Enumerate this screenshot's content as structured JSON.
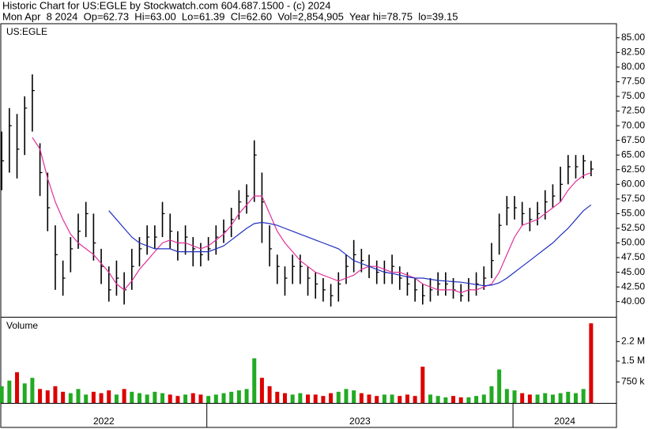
{
  "chart_data": [
    {
      "type": "ohlc",
      "title": "Historic Chart for US:EGLE by Stockwatch.com 604.687.1500 - (c) 2024",
      "subtitle": "Mon Apr  8 2024  Op=62.73  Hi=63.00  Lo=61.39  Cl=62.60  Vol=2,854,905  Year hi=78.75  lo=39.15",
      "label": "US:EGLE",
      "color": "#000000",
      "x": [
        2022.33,
        2022.355,
        2022.38,
        2022.405,
        2022.43,
        2022.455,
        2022.48,
        2022.505,
        2022.53,
        2022.555,
        2022.58,
        2022.605,
        2022.63,
        2022.655,
        2022.68,
        2022.705,
        2022.73,
        2022.755,
        2022.78,
        2022.805,
        2022.83,
        2022.855,
        2022.88,
        2022.905,
        2022.93,
        2022.955,
        2022.98,
        2023.005,
        2023.03,
        2023.055,
        2023.08,
        2023.105,
        2023.13,
        2023.155,
        2023.18,
        2023.205,
        2023.23,
        2023.255,
        2023.28,
        2023.305,
        2023.33,
        2023.355,
        2023.38,
        2023.405,
        2023.43,
        2023.455,
        2023.48,
        2023.505,
        2023.53,
        2023.555,
        2023.58,
        2023.605,
        2023.63,
        2023.655,
        2023.68,
        2023.705,
        2023.73,
        2023.755,
        2023.78,
        2023.805,
        2023.83,
        2023.855,
        2023.88,
        2023.905,
        2023.93,
        2023.955,
        2023.98,
        2024.005,
        2024.03,
        2024.055,
        2024.08,
        2024.105,
        2024.13,
        2024.155,
        2024.18,
        2024.205,
        2024.23,
        2024.255
      ],
      "high": [
        69,
        73,
        72,
        75,
        78.75,
        67,
        62,
        53,
        47,
        51,
        55,
        57,
        55,
        49,
        46,
        47,
        45,
        49,
        51,
        53,
        53,
        57,
        55,
        52,
        53,
        51,
        50,
        51,
        53,
        54,
        56,
        59,
        60,
        67.5,
        62,
        53,
        48,
        46,
        48,
        48,
        46,
        45,
        44,
        43,
        45,
        48,
        50.5,
        49,
        48,
        47,
        47,
        48,
        46,
        45,
        44,
        43,
        44,
        45,
        45,
        44,
        43,
        44,
        45,
        46,
        50,
        55,
        58,
        58,
        57,
        56,
        57,
        59,
        60,
        63,
        65,
        65,
        65,
        64
      ],
      "low": [
        59,
        62,
        61,
        65,
        69,
        58,
        52,
        42,
        41,
        45,
        49,
        51,
        47,
        43,
        40,
        41,
        39.5,
        42,
        46,
        48,
        49,
        51,
        49,
        47,
        48,
        46,
        46,
        47,
        48,
        50,
        51,
        54,
        55,
        57,
        50,
        46,
        43,
        41,
        43,
        43,
        41,
        40.5,
        40,
        39.15,
        40,
        43,
        45,
        45,
        44,
        43,
        43,
        43,
        42,
        41,
        40,
        39.5,
        40,
        41,
        41,
        40.5,
        40,
        40,
        41,
        42,
        44,
        48,
        53,
        54,
        53,
        52,
        53,
        54,
        56,
        57,
        60,
        61,
        61,
        61.39
      ],
      "close": [
        64,
        70,
        66,
        73,
        76,
        62,
        56,
        48,
        44,
        49,
        52,
        55,
        50,
        46,
        42,
        44,
        42,
        46,
        49,
        51,
        51,
        55,
        52,
        50,
        51,
        49,
        48,
        49,
        51,
        52,
        54,
        57,
        58,
        65,
        57,
        49,
        46,
        44,
        46,
        46,
        44,
        43,
        42,
        41,
        43,
        46,
        48,
        47,
        46,
        45,
        45,
        46,
        44,
        43,
        42,
        41,
        42,
        43,
        43,
        42,
        41,
        42,
        43,
        44,
        47,
        53,
        56,
        56,
        55,
        54,
        55,
        57,
        58,
        60,
        63,
        63,
        64,
        62.6
      ],
      "lines": [
        {
          "color": "#e0309a",
          "values": [
            null,
            null,
            null,
            null,
            68,
            66,
            61,
            57,
            54,
            51.5,
            50,
            49,
            48,
            46.5,
            45,
            43,
            42,
            43.5,
            45.5,
            47,
            48.5,
            50,
            50.5,
            50,
            50,
            49.5,
            49,
            49.5,
            50.5,
            51.5,
            53,
            55,
            56.5,
            58,
            58,
            55,
            52,
            50,
            48.5,
            47,
            46,
            45,
            44.5,
            44,
            43.5,
            44,
            44.5,
            45.5,
            46,
            46,
            45.5,
            45,
            45,
            44.5,
            44,
            43,
            42.5,
            42,
            42,
            42,
            41.5,
            42,
            42,
            42.5,
            43,
            45,
            48,
            51,
            53,
            53.5,
            54,
            55,
            56,
            57,
            59,
            60.5,
            61.5,
            62
          ]
        },
        {
          "color": "#2030c0",
          "values": [
            null,
            null,
            null,
            null,
            null,
            null,
            null,
            null,
            null,
            null,
            null,
            null,
            null,
            null,
            55.5,
            54,
            52.5,
            51,
            50,
            49.5,
            49,
            49,
            49,
            48.5,
            48.5,
            48.5,
            48.5,
            48.5,
            49,
            49.5,
            50.5,
            51.5,
            52.5,
            53.3,
            53.5,
            53.3,
            53,
            52.5,
            52,
            51.5,
            51,
            50.5,
            50,
            49.5,
            49,
            48,
            47,
            46.5,
            46,
            45.5,
            45,
            44.8,
            44.5,
            44.2,
            44,
            44,
            43.8,
            43.6,
            43.5,
            43.4,
            43.3,
            43.1,
            42.9,
            42.7,
            42.8,
            43.2,
            44,
            45,
            46,
            47,
            48,
            49,
            50,
            51.3,
            52.5,
            54,
            55.5,
            56.5
          ]
        }
      ],
      "ylim": [
        37.4,
        87.4
      ],
      "yticks": [
        {
          "value": 40,
          "label": "40.00"
        },
        {
          "value": 42.5,
          "label": "42.50"
        },
        {
          "value": 45,
          "label": "45.00"
        },
        {
          "value": 47.5,
          "label": "47.50"
        },
        {
          "value": 50,
          "label": "50.00"
        },
        {
          "value": 52.5,
          "label": "52.50"
        },
        {
          "value": 55,
          "label": "55.00"
        },
        {
          "value": 57.5,
          "label": "57.50"
        },
        {
          "value": 60,
          "label": "60.00"
        },
        {
          "value": 62.5,
          "label": "62.50"
        },
        {
          "value": 65,
          "label": "65.00"
        },
        {
          "value": 67.5,
          "label": "67.50"
        },
        {
          "value": 70,
          "label": "70.00"
        },
        {
          "value": 72.5,
          "label": "72.50"
        },
        {
          "value": 75,
          "label": "75.00"
        },
        {
          "value": 77.5,
          "label": "77.50"
        },
        {
          "value": 80,
          "label": "80.00"
        },
        {
          "value": 82.5,
          "label": "82.50"
        },
        {
          "value": 85,
          "label": "85.00"
        }
      ],
      "xlim": [
        2022.327,
        2024.338
      ]
    },
    {
      "type": "bar",
      "label": "Volume",
      "up_color": "#22aa22",
      "down_color": "#dd0000",
      "x": [
        2022.33,
        2022.355,
        2022.38,
        2022.405,
        2022.43,
        2022.455,
        2022.48,
        2022.505,
        2022.53,
        2022.555,
        2022.58,
        2022.605,
        2022.63,
        2022.655,
        2022.68,
        2022.705,
        2022.73,
        2022.755,
        2022.78,
        2022.805,
        2022.83,
        2022.855,
        2022.88,
        2022.905,
        2022.93,
        2022.955,
        2022.98,
        2023.005,
        2023.03,
        2023.055,
        2023.08,
        2023.105,
        2023.13,
        2023.155,
        2023.18,
        2023.205,
        2023.23,
        2023.255,
        2023.28,
        2023.305,
        2023.33,
        2023.355,
        2023.38,
        2023.405,
        2023.43,
        2023.455,
        2023.48,
        2023.505,
        2023.53,
        2023.555,
        2023.58,
        2023.605,
        2023.63,
        2023.655,
        2023.68,
        2023.705,
        2023.73,
        2023.755,
        2023.78,
        2023.805,
        2023.83,
        2023.855,
        2023.88,
        2023.905,
        2023.93,
        2023.955,
        2023.98,
        2024.005,
        2024.03,
        2024.055,
        2024.08,
        2024.105,
        2024.13,
        2024.155,
        2024.18,
        2024.205,
        2024.23,
        2024.255
      ],
      "values": [
        600000,
        800000,
        1100000,
        700000,
        900000,
        500000,
        450000,
        600000,
        400000,
        350000,
        500000,
        300000,
        400000,
        350000,
        450000,
        300000,
        500000,
        400000,
        350000,
        300000,
        400000,
        350000,
        300000,
        250000,
        300000,
        350000,
        300000,
        250000,
        300000,
        350000,
        400000,
        450000,
        500000,
        1600000,
        900000,
        600000,
        400000,
        350000,
        300000,
        350000,
        300000,
        300000,
        250000,
        350000,
        400000,
        500000,
        450000,
        350000,
        300000,
        250000,
        300000,
        300000,
        250000,
        300000,
        250000,
        1300000,
        300000,
        250000,
        200000,
        250000,
        200000,
        200000,
        250000,
        300000,
        600000,
        1200000,
        500000,
        450000,
        350000,
        300000,
        300000,
        350000,
        300000,
        350000,
        400000,
        350000,
        500000,
        2854905
      ],
      "ylim": [
        0,
        3060000
      ],
      "yticks": [
        {
          "value": 750000,
          "label": "750 k"
        },
        {
          "value": 1500000,
          "label": "1.5 M"
        },
        {
          "value": 2200000,
          "label": "2.2 M"
        }
      ],
      "xlim": [
        2022.327,
        2024.338
      ],
      "xticks": [
        2023,
        2024
      ],
      "year_labels": [
        "2022",
        "2023",
        "2024"
      ]
    }
  ]
}
